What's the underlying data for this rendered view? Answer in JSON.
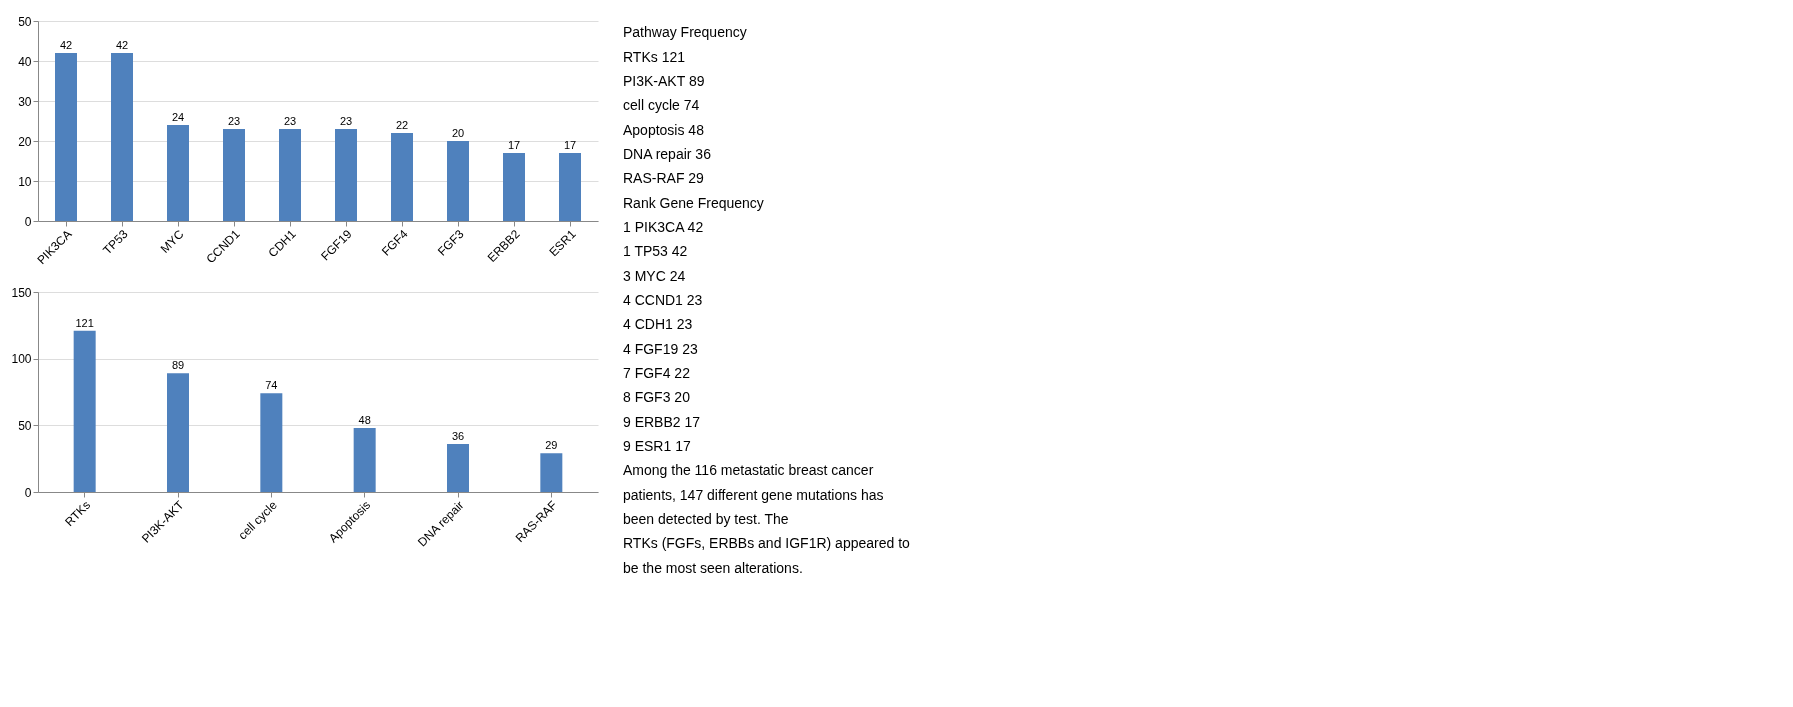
{
  "chart_data": [
    {
      "type": "bar",
      "categories": [
        "PIK3CA",
        "TP53",
        "MYC",
        "CCND1",
        "CDH1",
        "FGF19",
        "FGF4",
        "FGF3",
        "ERBB2",
        "ESR1"
      ],
      "values": [
        42,
        42,
        24,
        23,
        23,
        23,
        22,
        20,
        17,
        17
      ],
      "color": "#4f81bd",
      "ylim": [
        0,
        50
      ],
      "yticks": [
        0,
        10,
        20,
        30,
        40,
        50
      ],
      "grid": "y",
      "data_labels": true
    },
    {
      "type": "bar",
      "categories": [
        "RTKs",
        "PI3K-AKT",
        "cell cycle",
        "Apoptosis",
        "DNA repair",
        "RAS-RAF"
      ],
      "values": [
        121,
        89,
        74,
        48,
        36,
        29
      ],
      "color": "#4f81bd",
      "ylim": [
        0,
        150
      ],
      "yticks": [
        0,
        50,
        100,
        150
      ],
      "grid": "y",
      "data_labels": true
    },
    {
      "type": "other",
      "annotations": [
        "Pathway    Frequency",
        "RTKs    121",
        "PI3K-AKT    89",
        "cell cycle    74",
        "Apoptosis    48",
        "DNA repair    36",
        "RAS-RAF    29",
        "Rank    Gene    Frequency",
        "1    PIK3CA    42",
        "1    TP53    42",
        "3    MYC    24",
        "4    CCND1    23",
        "4    CDH1    23",
        "4    FGF19    23",
        "7    FGF4    22",
        "8    FGF3    20",
        "9    ERBB2    17",
        "9    ESR1    17",
        "Among the 116 metastatic breast cancer",
        "patients, 147 different gene mutations has",
        "been detected by test. The",
        "RTKs (FGFs, ERBBs and IGF1R) appeared to",
        "be the most seen alterations."
      ]
    }
  ]
}
